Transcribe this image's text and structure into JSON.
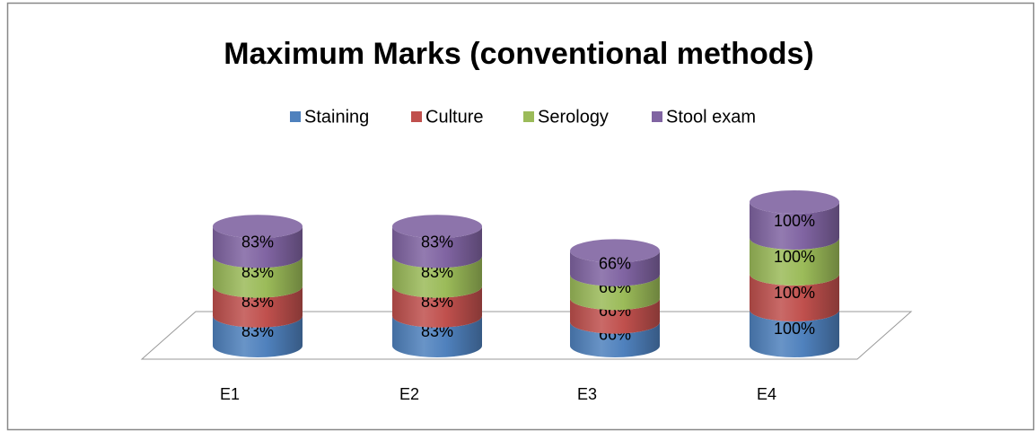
{
  "chart_data": {
    "type": "stacked-cylinder",
    "title": "Maximum Marks (conventional methods)",
    "categories": [
      "E1",
      "E2",
      "E3",
      "E4"
    ],
    "series": [
      {
        "name": "Staining",
        "color": "#4f81bd",
        "values": [
          83,
          83,
          66,
          100
        ],
        "value_labels": [
          "83%",
          "83%",
          "66%",
          "100%"
        ]
      },
      {
        "name": "Culture",
        "color": "#c0504d",
        "values": [
          83,
          83,
          66,
          100
        ],
        "value_labels": [
          "83%",
          "83%",
          "66%",
          "100%"
        ]
      },
      {
        "name": "Serology",
        "color": "#9bbb59",
        "values": [
          83,
          83,
          66,
          100
        ],
        "value_labels": [
          "83%",
          "83%",
          "66%",
          "100%"
        ]
      },
      {
        "name": "Stool exam",
        "color": "#8064a2",
        "values": [
          83,
          83,
          66,
          100
        ],
        "value_labels": [
          "83%",
          "83%",
          "66%",
          "100%"
        ]
      }
    ],
    "legend": "top"
  }
}
